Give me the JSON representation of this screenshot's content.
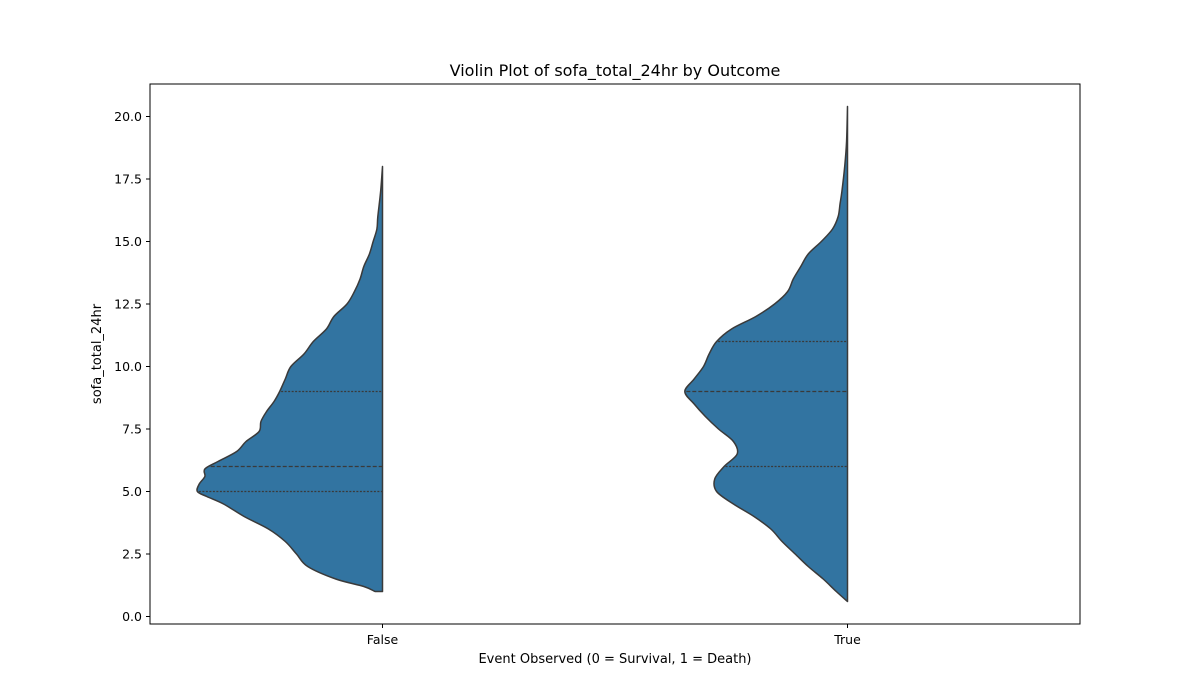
{
  "chart_data": {
    "type": "violin",
    "title": "Violin Plot of sofa_total_24hr by Outcome",
    "xlabel": "Event Observed (0 = Survival, 1 = Death)",
    "ylabel": "sofa_total_24hr",
    "categories": [
      "False",
      "True"
    ],
    "ylim": [
      -0.3,
      21.3
    ],
    "yticks": [
      0.0,
      2.5,
      5.0,
      7.5,
      10.0,
      12.5,
      15.0,
      17.5,
      20.0
    ],
    "ytick_labels": [
      "0.0",
      "2.5",
      "5.0",
      "7.5",
      "10.0",
      "12.5",
      "15.0",
      "17.5",
      "20.0"
    ],
    "split": true,
    "side": "left",
    "color": "#3274a1",
    "edge_color": "#3a3a3a",
    "violins": [
      {
        "category": "False",
        "y_min": 1.0,
        "y_max": 18.0,
        "quartiles": [
          5.0,
          6.0,
          9.0
        ],
        "outline": [
          [
            1.0,
            0.04
          ],
          [
            1.2,
            0.1
          ],
          [
            1.5,
            0.25
          ],
          [
            2.0,
            0.4
          ],
          [
            2.5,
            0.46
          ],
          [
            3.0,
            0.52
          ],
          [
            3.5,
            0.61
          ],
          [
            4.0,
            0.74
          ],
          [
            4.5,
            0.85
          ],
          [
            4.8,
            0.94
          ],
          [
            5.0,
            0.99
          ],
          [
            5.3,
            0.98
          ],
          [
            5.6,
            0.95
          ],
          [
            5.9,
            0.95
          ],
          [
            6.2,
            0.88
          ],
          [
            6.6,
            0.78
          ],
          [
            7.0,
            0.73
          ],
          [
            7.4,
            0.66
          ],
          [
            7.8,
            0.65
          ],
          [
            8.2,
            0.62
          ],
          [
            8.6,
            0.58
          ],
          [
            9.0,
            0.55
          ],
          [
            9.5,
            0.52
          ],
          [
            10.0,
            0.49
          ],
          [
            10.5,
            0.42
          ],
          [
            11.0,
            0.37
          ],
          [
            11.5,
            0.3
          ],
          [
            12.0,
            0.26
          ],
          [
            12.5,
            0.19
          ],
          [
            13.0,
            0.15
          ],
          [
            13.5,
            0.12
          ],
          [
            14.0,
            0.1
          ],
          [
            14.5,
            0.07
          ],
          [
            15.0,
            0.05
          ],
          [
            15.5,
            0.03
          ],
          [
            16.0,
            0.025
          ],
          [
            17.0,
            0.01
          ],
          [
            18.0,
            0.0
          ]
        ]
      },
      {
        "category": "True",
        "y_min": 0.6,
        "y_max": 20.4,
        "quartiles": [
          6.0,
          9.0,
          11.0
        ],
        "outline": [
          [
            0.6,
            0.0
          ],
          [
            1.0,
            0.06
          ],
          [
            1.5,
            0.13
          ],
          [
            2.0,
            0.21
          ],
          [
            2.5,
            0.28
          ],
          [
            3.0,
            0.35
          ],
          [
            3.5,
            0.41
          ],
          [
            4.0,
            0.5
          ],
          [
            4.5,
            0.61
          ],
          [
            5.0,
            0.7
          ],
          [
            5.5,
            0.71
          ],
          [
            6.0,
            0.66
          ],
          [
            6.5,
            0.59
          ],
          [
            7.0,
            0.61
          ],
          [
            7.5,
            0.69
          ],
          [
            8.0,
            0.76
          ],
          [
            8.5,
            0.82
          ],
          [
            9.0,
            0.87
          ],
          [
            9.5,
            0.82
          ],
          [
            10.0,
            0.77
          ],
          [
            10.5,
            0.74
          ],
          [
            11.0,
            0.7
          ],
          [
            11.5,
            0.62
          ],
          [
            12.0,
            0.49
          ],
          [
            12.5,
            0.39
          ],
          [
            13.0,
            0.32
          ],
          [
            13.5,
            0.29
          ],
          [
            14.0,
            0.25
          ],
          [
            14.5,
            0.21
          ],
          [
            15.0,
            0.14
          ],
          [
            15.5,
            0.08
          ],
          [
            16.0,
            0.05
          ],
          [
            16.5,
            0.04
          ],
          [
            17.0,
            0.03
          ],
          [
            18.0,
            0.015
          ],
          [
            19.0,
            0.005
          ],
          [
            20.4,
            0.0
          ]
        ]
      }
    ]
  }
}
